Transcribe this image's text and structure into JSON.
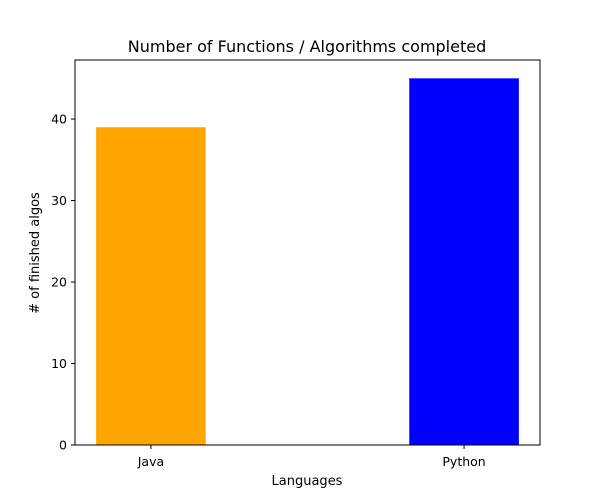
{
  "chart_data": {
    "type": "bar",
    "title": "Number of Functions / Algorithms completed",
    "xlabel": "Languages",
    "ylabel": "# of finished algos",
    "categories": [
      "Java",
      "Python"
    ],
    "values": [
      39,
      45
    ],
    "colors": [
      "#ffa500",
      "#0000ff"
    ],
    "ylim": [
      0,
      47.25
    ],
    "yticks": [
      0,
      10,
      20,
      30,
      40
    ],
    "grid": false,
    "legend": "none"
  }
}
